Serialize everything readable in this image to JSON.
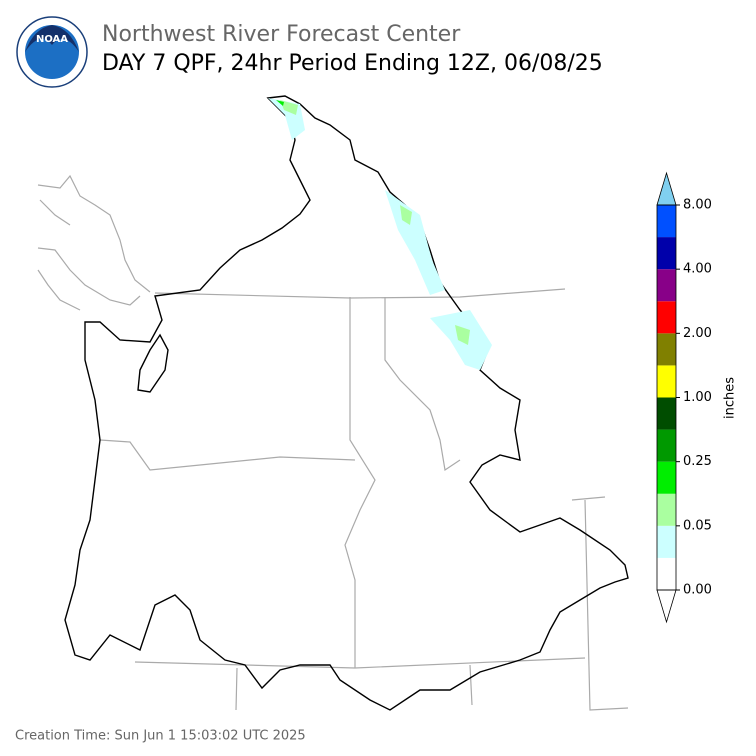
{
  "header": {
    "logo_text": "NOAA",
    "title": "Northwest River Forecast Center",
    "subtitle": "DAY 7 QPF, 24hr Period Ending 12Z, 06/08/25"
  },
  "colorbar": {
    "label": "inches",
    "ticks": [
      {
        "value": 0,
        "label": "0.00"
      },
      {
        "value": 0.05,
        "label": "0.05"
      },
      {
        "value": 0.25,
        "label": "0.25"
      },
      {
        "value": 1,
        "label": "1.00"
      },
      {
        "value": 2,
        "label": "2.00"
      },
      {
        "value": 4,
        "label": "4.00"
      },
      {
        "value": 8,
        "label": "8.00"
      }
    ],
    "colors": [
      "#ffffff",
      "#ccffff",
      "#aaffa0",
      "#00ee00",
      "#009900",
      "#004d00",
      "#ffff00",
      "#808000",
      "#ff0000",
      "#880088",
      "#0000aa",
      "#0050ff"
    ],
    "under_color": "#ffffff",
    "over_color": "#80d0f0"
  },
  "footer": {
    "creation_time": "Creation Time: Sun Jun 1 15:03:02 UTC 2025"
  }
}
